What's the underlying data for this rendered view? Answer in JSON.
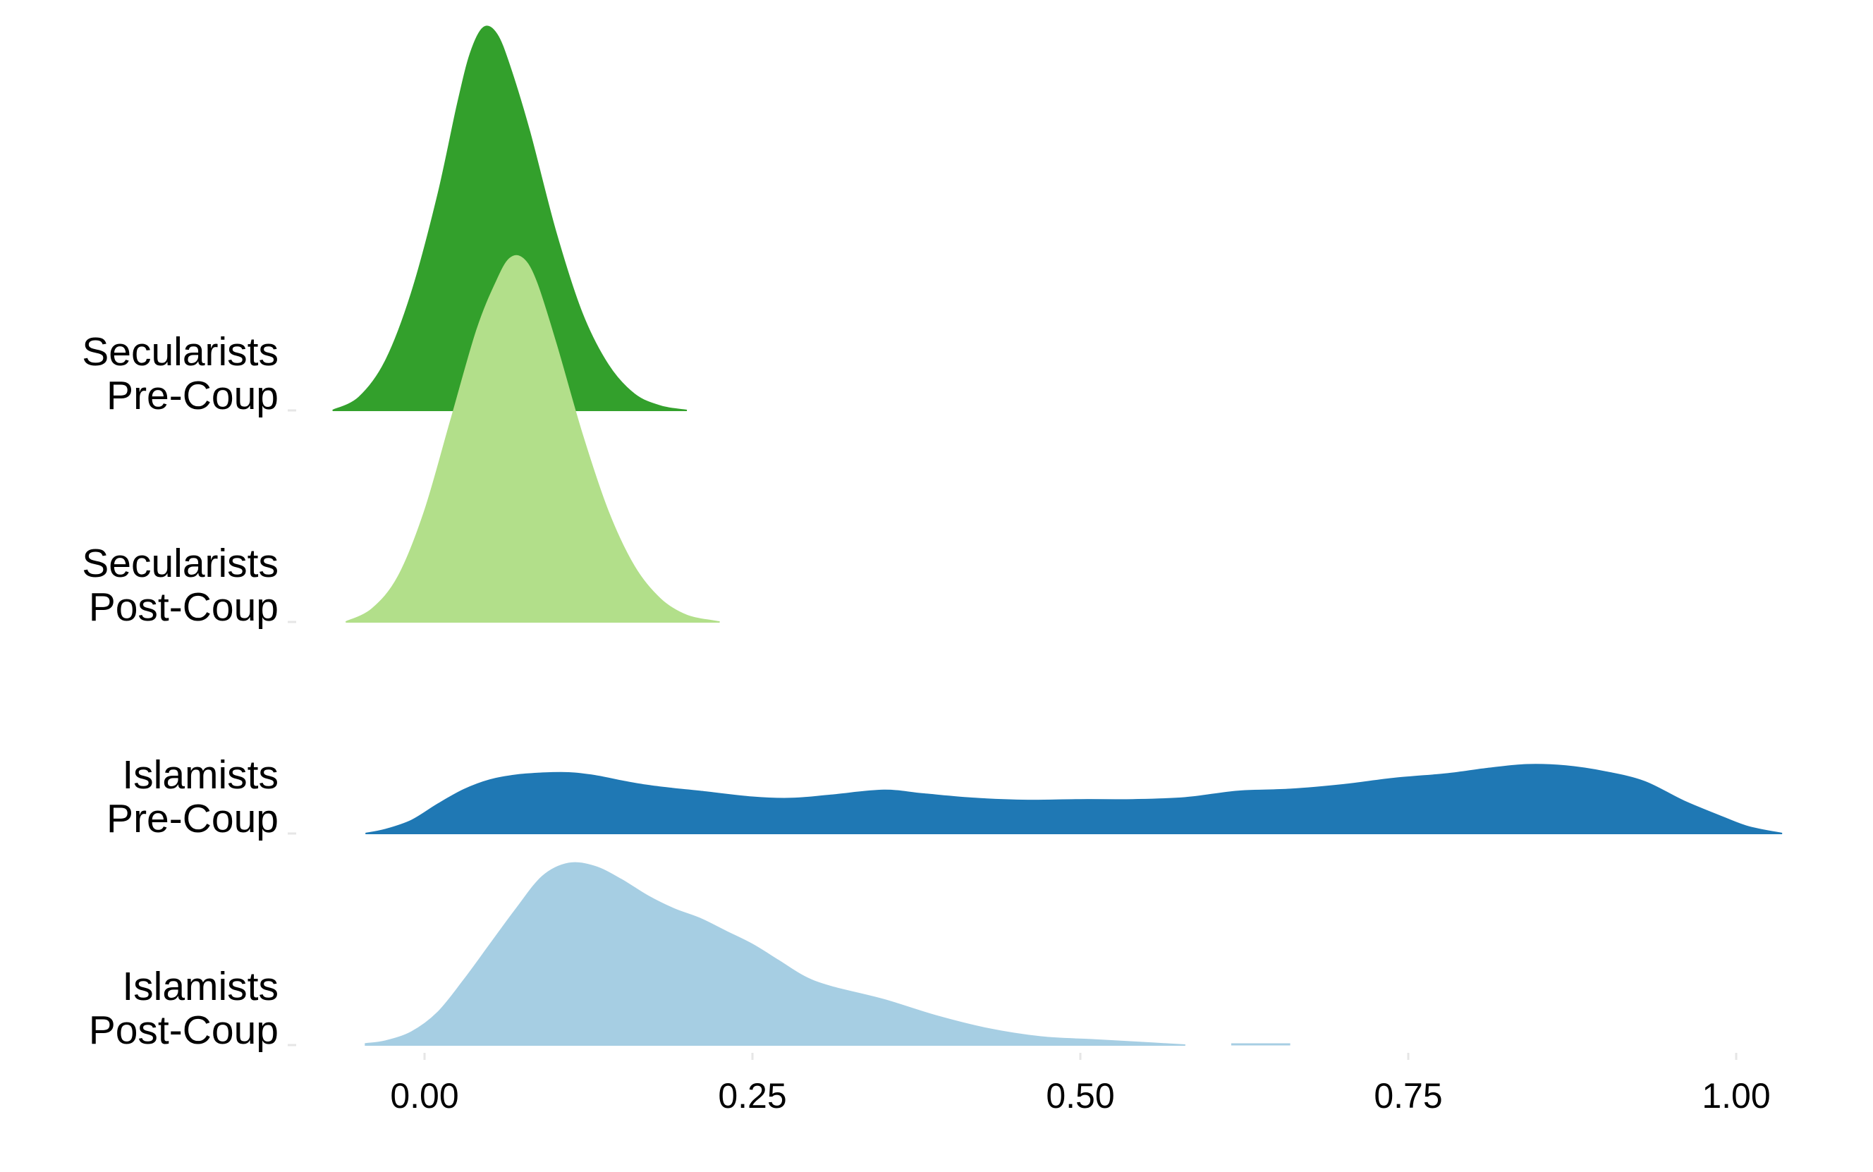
{
  "chart_data": {
    "type": "ridgeline",
    "title": "",
    "xlabel": "",
    "ylabel": "",
    "xlim": [
      -0.05,
      1.04
    ],
    "x_ticks": [
      {
        "value": 0.0,
        "label": "0.00"
      },
      {
        "value": 0.25,
        "label": "0.25"
      },
      {
        "value": 0.5,
        "label": "0.50"
      },
      {
        "value": 0.75,
        "label": "0.75"
      },
      {
        "value": 1.0,
        "label": "1.00"
      }
    ],
    "grid": false,
    "legend": "none",
    "series": [
      {
        "id": "islamists-post-coup",
        "label_line1": "Islamists",
        "label_line2": "Post-Coup",
        "color": "#a6cee3",
        "points": [
          [
            -0.045,
            0.004
          ],
          [
            -0.03,
            0.012
          ],
          [
            -0.01,
            0.04
          ],
          [
            0.01,
            0.1
          ],
          [
            0.03,
            0.2
          ],
          [
            0.05,
            0.31
          ],
          [
            0.07,
            0.42
          ],
          [
            0.09,
            0.52
          ],
          [
            0.11,
            0.56
          ],
          [
            0.13,
            0.55
          ],
          [
            0.15,
            0.51
          ],
          [
            0.17,
            0.46
          ],
          [
            0.19,
            0.42
          ],
          [
            0.21,
            0.39
          ],
          [
            0.23,
            0.35
          ],
          [
            0.25,
            0.31
          ],
          [
            0.27,
            0.26
          ],
          [
            0.29,
            0.21
          ],
          [
            0.31,
            0.18
          ],
          [
            0.35,
            0.14
          ],
          [
            0.39,
            0.09
          ],
          [
            0.43,
            0.05
          ],
          [
            0.47,
            0.025
          ],
          [
            0.51,
            0.016
          ],
          [
            0.55,
            0.007
          ],
          [
            0.58,
            0.0
          ]
        ],
        "extra_segments": [
          [
            [
              0.615,
              0.0
            ],
            [
              0.66,
              0.0
            ]
          ]
        ]
      },
      {
        "id": "islamists-pre-coup",
        "label_line1": "Islamists",
        "label_line2": "Pre-Coup",
        "color": "#1f78b4",
        "points": [
          [
            -0.045,
            0.0
          ],
          [
            -0.03,
            0.012
          ],
          [
            -0.01,
            0.04
          ],
          [
            0.01,
            0.09
          ],
          [
            0.03,
            0.135
          ],
          [
            0.05,
            0.165
          ],
          [
            0.07,
            0.18
          ],
          [
            0.09,
            0.186
          ],
          [
            0.11,
            0.187
          ],
          [
            0.13,
            0.178
          ],
          [
            0.15,
            0.162
          ],
          [
            0.17,
            0.148
          ],
          [
            0.19,
            0.138
          ],
          [
            0.21,
            0.13
          ],
          [
            0.25,
            0.112
          ],
          [
            0.28,
            0.108
          ],
          [
            0.31,
            0.118
          ],
          [
            0.35,
            0.133
          ],
          [
            0.38,
            0.122
          ],
          [
            0.42,
            0.108
          ],
          [
            0.46,
            0.102
          ],
          [
            0.5,
            0.104
          ],
          [
            0.54,
            0.104
          ],
          [
            0.58,
            0.11
          ],
          [
            0.62,
            0.13
          ],
          [
            0.66,
            0.136
          ],
          [
            0.7,
            0.15
          ],
          [
            0.74,
            0.17
          ],
          [
            0.78,
            0.184
          ],
          [
            0.81,
            0.2
          ],
          [
            0.84,
            0.212
          ],
          [
            0.87,
            0.208
          ],
          [
            0.9,
            0.19
          ],
          [
            0.93,
            0.16
          ],
          [
            0.96,
            0.1
          ],
          [
            0.99,
            0.05
          ],
          [
            1.01,
            0.02
          ],
          [
            1.035,
            0.0
          ]
        ]
      },
      {
        "id": "secularists-post-coup",
        "label_line1": "Secularists",
        "label_line2": "Post-Coup",
        "color": "#b2df8a",
        "points": [
          [
            -0.06,
            0.0
          ],
          [
            -0.04,
            0.04
          ],
          [
            -0.02,
            0.14
          ],
          [
            0.0,
            0.34
          ],
          [
            0.02,
            0.62
          ],
          [
            0.04,
            0.9
          ],
          [
            0.055,
            1.05
          ],
          [
            0.065,
            1.12
          ],
          [
            0.075,
            1.12
          ],
          [
            0.085,
            1.05
          ],
          [
            0.1,
            0.86
          ],
          [
            0.12,
            0.58
          ],
          [
            0.14,
            0.34
          ],
          [
            0.16,
            0.17
          ],
          [
            0.18,
            0.07
          ],
          [
            0.2,
            0.02
          ],
          [
            0.22,
            0.003
          ],
          [
            0.225,
            0.0
          ]
        ]
      },
      {
        "id": "secularists-pre-coup",
        "label_line1": "Secularists",
        "label_line2": "Pre-Coup",
        "color": "#33a02c",
        "points": [
          [
            -0.07,
            0.0
          ],
          [
            -0.05,
            0.04
          ],
          [
            -0.03,
            0.15
          ],
          [
            -0.01,
            0.36
          ],
          [
            0.01,
            0.66
          ],
          [
            0.025,
            0.94
          ],
          [
            0.035,
            1.1
          ],
          [
            0.045,
            1.18
          ],
          [
            0.055,
            1.16
          ],
          [
            0.065,
            1.06
          ],
          [
            0.08,
            0.86
          ],
          [
            0.1,
            0.55
          ],
          [
            0.12,
            0.3
          ],
          [
            0.14,
            0.14
          ],
          [
            0.16,
            0.05
          ],
          [
            0.18,
            0.013
          ],
          [
            0.2,
            0.0
          ]
        ]
      }
    ]
  }
}
